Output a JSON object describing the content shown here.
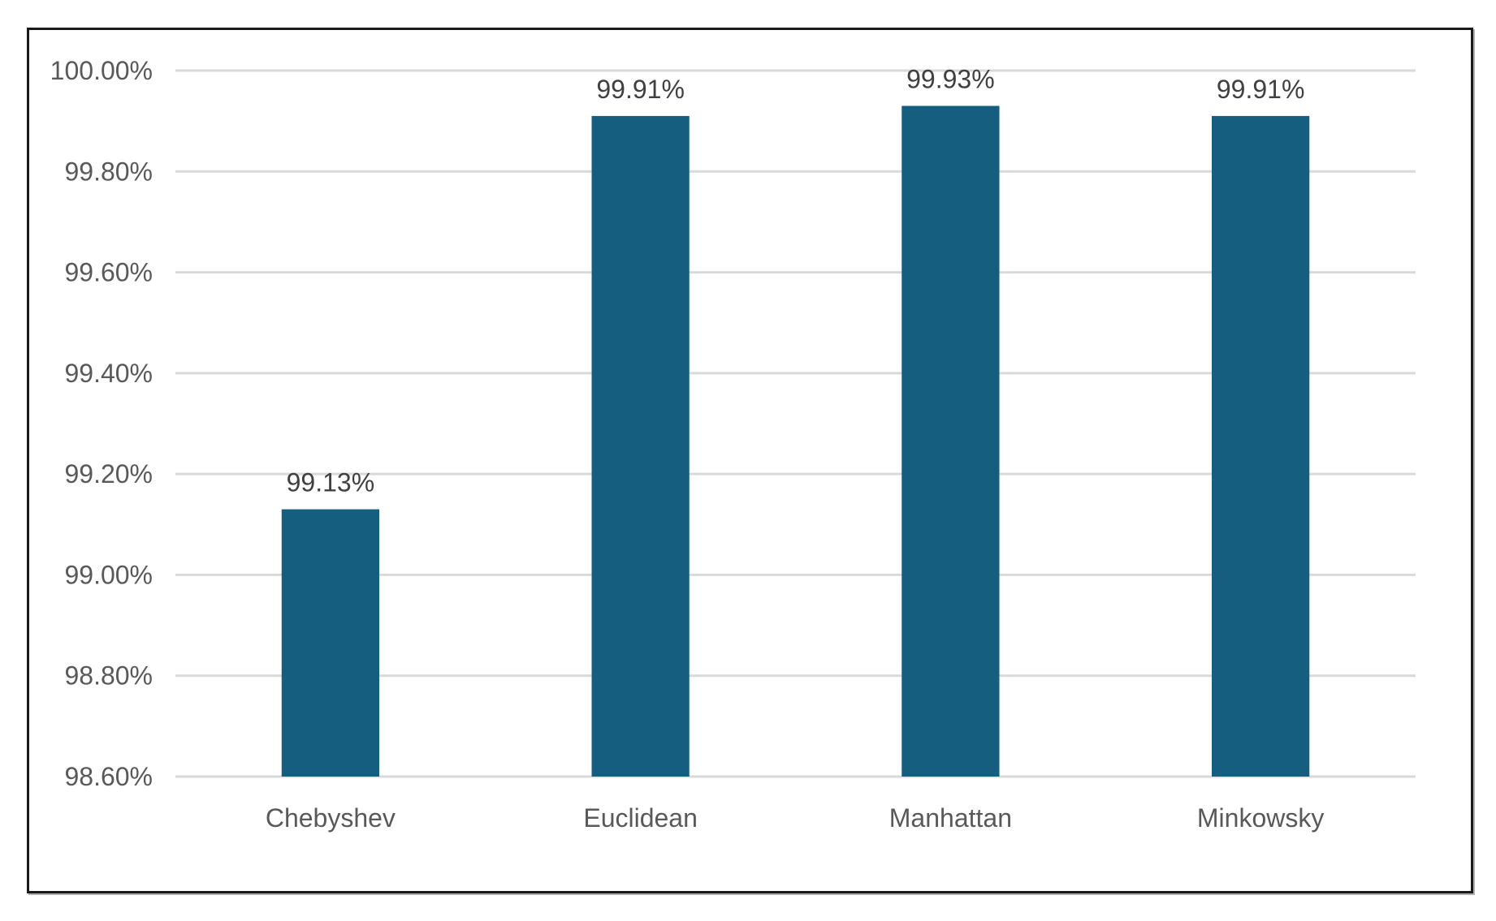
{
  "chart_data": {
    "type": "bar",
    "categories": [
      "Chebyshev",
      "Euclidean",
      "Manhattan",
      "Minkowsky"
    ],
    "values": [
      99.13,
      99.91,
      99.93,
      99.91
    ],
    "data_labels": [
      "99.13%",
      "99.91%",
      "99.93%",
      "99.91%"
    ],
    "title": "",
    "xlabel": "",
    "ylabel": "",
    "ylim": [
      98.6,
      100.0
    ],
    "yticks": [
      98.6,
      98.8,
      99.0,
      99.2,
      99.4,
      99.6,
      99.8,
      100.0
    ],
    "ytick_labels": [
      "98.60%",
      "98.80%",
      "99.00%",
      "99.20%",
      "99.40%",
      "99.60%",
      "99.80%",
      "100.00%"
    ],
    "grid": true,
    "legend": "none",
    "bar_color": "#165e80",
    "grid_color": "#d9d9d9"
  }
}
